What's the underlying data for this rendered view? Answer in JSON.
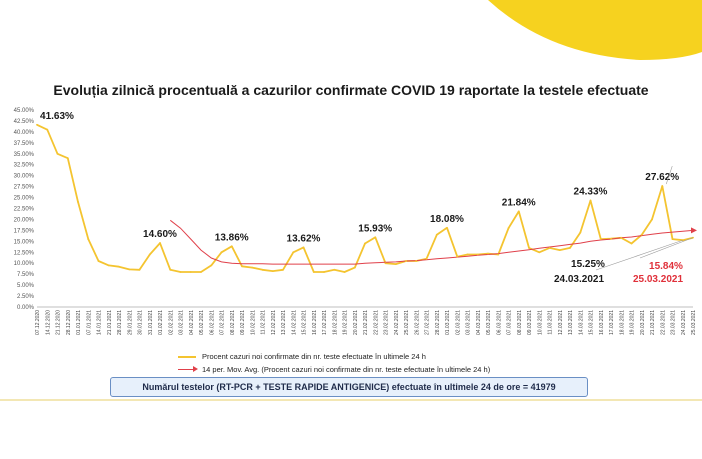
{
  "chart_data": {
    "type": "line",
    "title": "Evoluția zilnică procentuală a cazurilor confirmate COVID 19 raportate la testele efectuate",
    "ylim": [
      0,
      45
    ],
    "y_ticks": [
      "0.00%",
      "2.50%",
      "5.00%",
      "7.50%",
      "10.00%",
      "12.50%",
      "15.00%",
      "17.50%",
      "20.00%",
      "22.50%",
      "25.00%",
      "27.50%",
      "30.00%",
      "32.50%",
      "35.00%",
      "37.50%",
      "40.00%",
      "42.50%",
      "45.00%"
    ],
    "x": [
      "07.12.2020",
      "14.12.2020",
      "21.12.2020",
      "28.12.2020",
      "01.01.2021",
      "07.01.2021",
      "14.01.2021",
      "21.01.2021",
      "28.01.2021",
      "29.01.2021",
      "30.01.2021",
      "31.01.2021",
      "01.02.2021",
      "02.02.2021",
      "03.02.2021",
      "04.02.2021",
      "05.02.2021",
      "06.02.2021",
      "07.02.2021",
      "08.02.2021",
      "09.02.2021",
      "10.02.2021",
      "11.02.2021",
      "12.02.2021",
      "13.02.2021",
      "14.02.2021",
      "15.02.2021",
      "16.02.2021",
      "17.02.2021",
      "18.02.2021",
      "19.02.2021",
      "20.02.2021",
      "21.02.2021",
      "22.02.2021",
      "23.02.2021",
      "24.02.2021",
      "25.02.2021",
      "26.02.2021",
      "27.02.2021",
      "28.02.2021",
      "01.03.2021",
      "02.03.2021",
      "03.03.2021",
      "04.03.2021",
      "05.03.2021",
      "06.03.2021",
      "07.03.2021",
      "08.03.2021",
      "09.03.2021",
      "10.03.2021",
      "11.03.2021",
      "12.03.2021",
      "13.03.2021",
      "14.03.2021",
      "15.03.2021",
      "16.03.2021",
      "17.03.2021",
      "18.03.2021",
      "19.03.2021",
      "20.03.2021",
      "21.03.2021",
      "22.03.2021",
      "23.03.2021",
      "24.03.2021",
      "25.03.2021"
    ],
    "series": [
      {
        "name": "Procent cazuri noi confirmate din nr. teste efectuate în ultimele 24 h",
        "color": "#f4c430",
        "values": [
          41.63,
          40.5,
          35.0,
          34.0,
          24.0,
          15.5,
          10.5,
          9.5,
          9.2,
          8.6,
          8.5,
          12.0,
          14.6,
          8.5,
          8.0,
          8.0,
          8.0,
          9.5,
          12.5,
          13.86,
          9.3,
          9.0,
          8.5,
          8.2,
          8.5,
          12.5,
          13.62,
          8.0,
          8.0,
          8.5,
          8.0,
          9.0,
          14.5,
          15.93,
          10.0,
          9.8,
          10.5,
          10.5,
          11.0,
          16.5,
          18.08,
          11.5,
          12.0,
          12.0,
          12.2,
          12.0,
          18.0,
          21.84,
          13.5,
          12.5,
          13.5,
          13.0,
          13.5,
          17.0,
          24.33,
          15.5,
          15.6,
          15.8,
          14.5,
          16.5,
          20.0,
          27.62,
          15.5,
          15.25,
          15.84
        ]
      },
      {
        "name": "14 per. Mov. Avg. (Procent cazuri noi confirmate din nr. teste efectuate în ultimele 24 h)",
        "color": "#e0404a",
        "values": [
          null,
          null,
          null,
          null,
          null,
          null,
          null,
          null,
          null,
          null,
          null,
          null,
          null,
          19.8,
          18.0,
          15.5,
          13.0,
          11.2,
          10.3,
          10.0,
          9.9,
          9.9,
          9.9,
          9.8,
          9.8,
          9.8,
          9.8,
          9.8,
          9.8,
          9.8,
          9.8,
          9.8,
          10.0,
          10.1,
          10.2,
          10.3,
          10.5,
          10.6,
          10.8,
          11.0,
          11.2,
          11.4,
          11.6,
          11.8,
          12.0,
          12.2,
          12.5,
          12.8,
          13.1,
          13.4,
          13.7,
          14.0,
          14.3,
          14.6,
          15.0,
          15.3,
          15.5,
          15.8,
          16.0,
          16.3,
          16.6,
          16.9,
          17.1,
          17.3,
          17.5
        ]
      }
    ],
    "annotations": [
      {
        "label": "41.63%",
        "x_index": 0
      },
      {
        "label": "14.60%",
        "x_index": 12
      },
      {
        "label": "13.86%",
        "x_index": 19
      },
      {
        "label": "13.62%",
        "x_index": 26
      },
      {
        "label": "15.93%",
        "x_index": 33
      },
      {
        "label": "18.08%",
        "x_index": 40
      },
      {
        "label": "21.84%",
        "x_index": 47
      },
      {
        "label": "24.33%",
        "x_index": 54
      },
      {
        "label": "27.62%",
        "x_index": 61
      }
    ],
    "callouts": [
      {
        "value": "15.25%",
        "date": "24.03.2021",
        "color": "#1a1a1a",
        "x_index": 63
      },
      {
        "value": "15.84%",
        "date": "25.03.2021",
        "color": "#e0303a",
        "x_index": 64
      }
    ],
    "grid": false,
    "legend_position": "bottom"
  },
  "footer": {
    "text": "Numărul testelor (RT-PCR + TESTE RAPIDE ANTIGENICE) efectuate în ultimele 24 de ore = 41979"
  },
  "colors": {
    "decoration": "#f6d21f",
    "footer_border": "#6a8fc4",
    "footer_fill": "#e7f0fb"
  }
}
